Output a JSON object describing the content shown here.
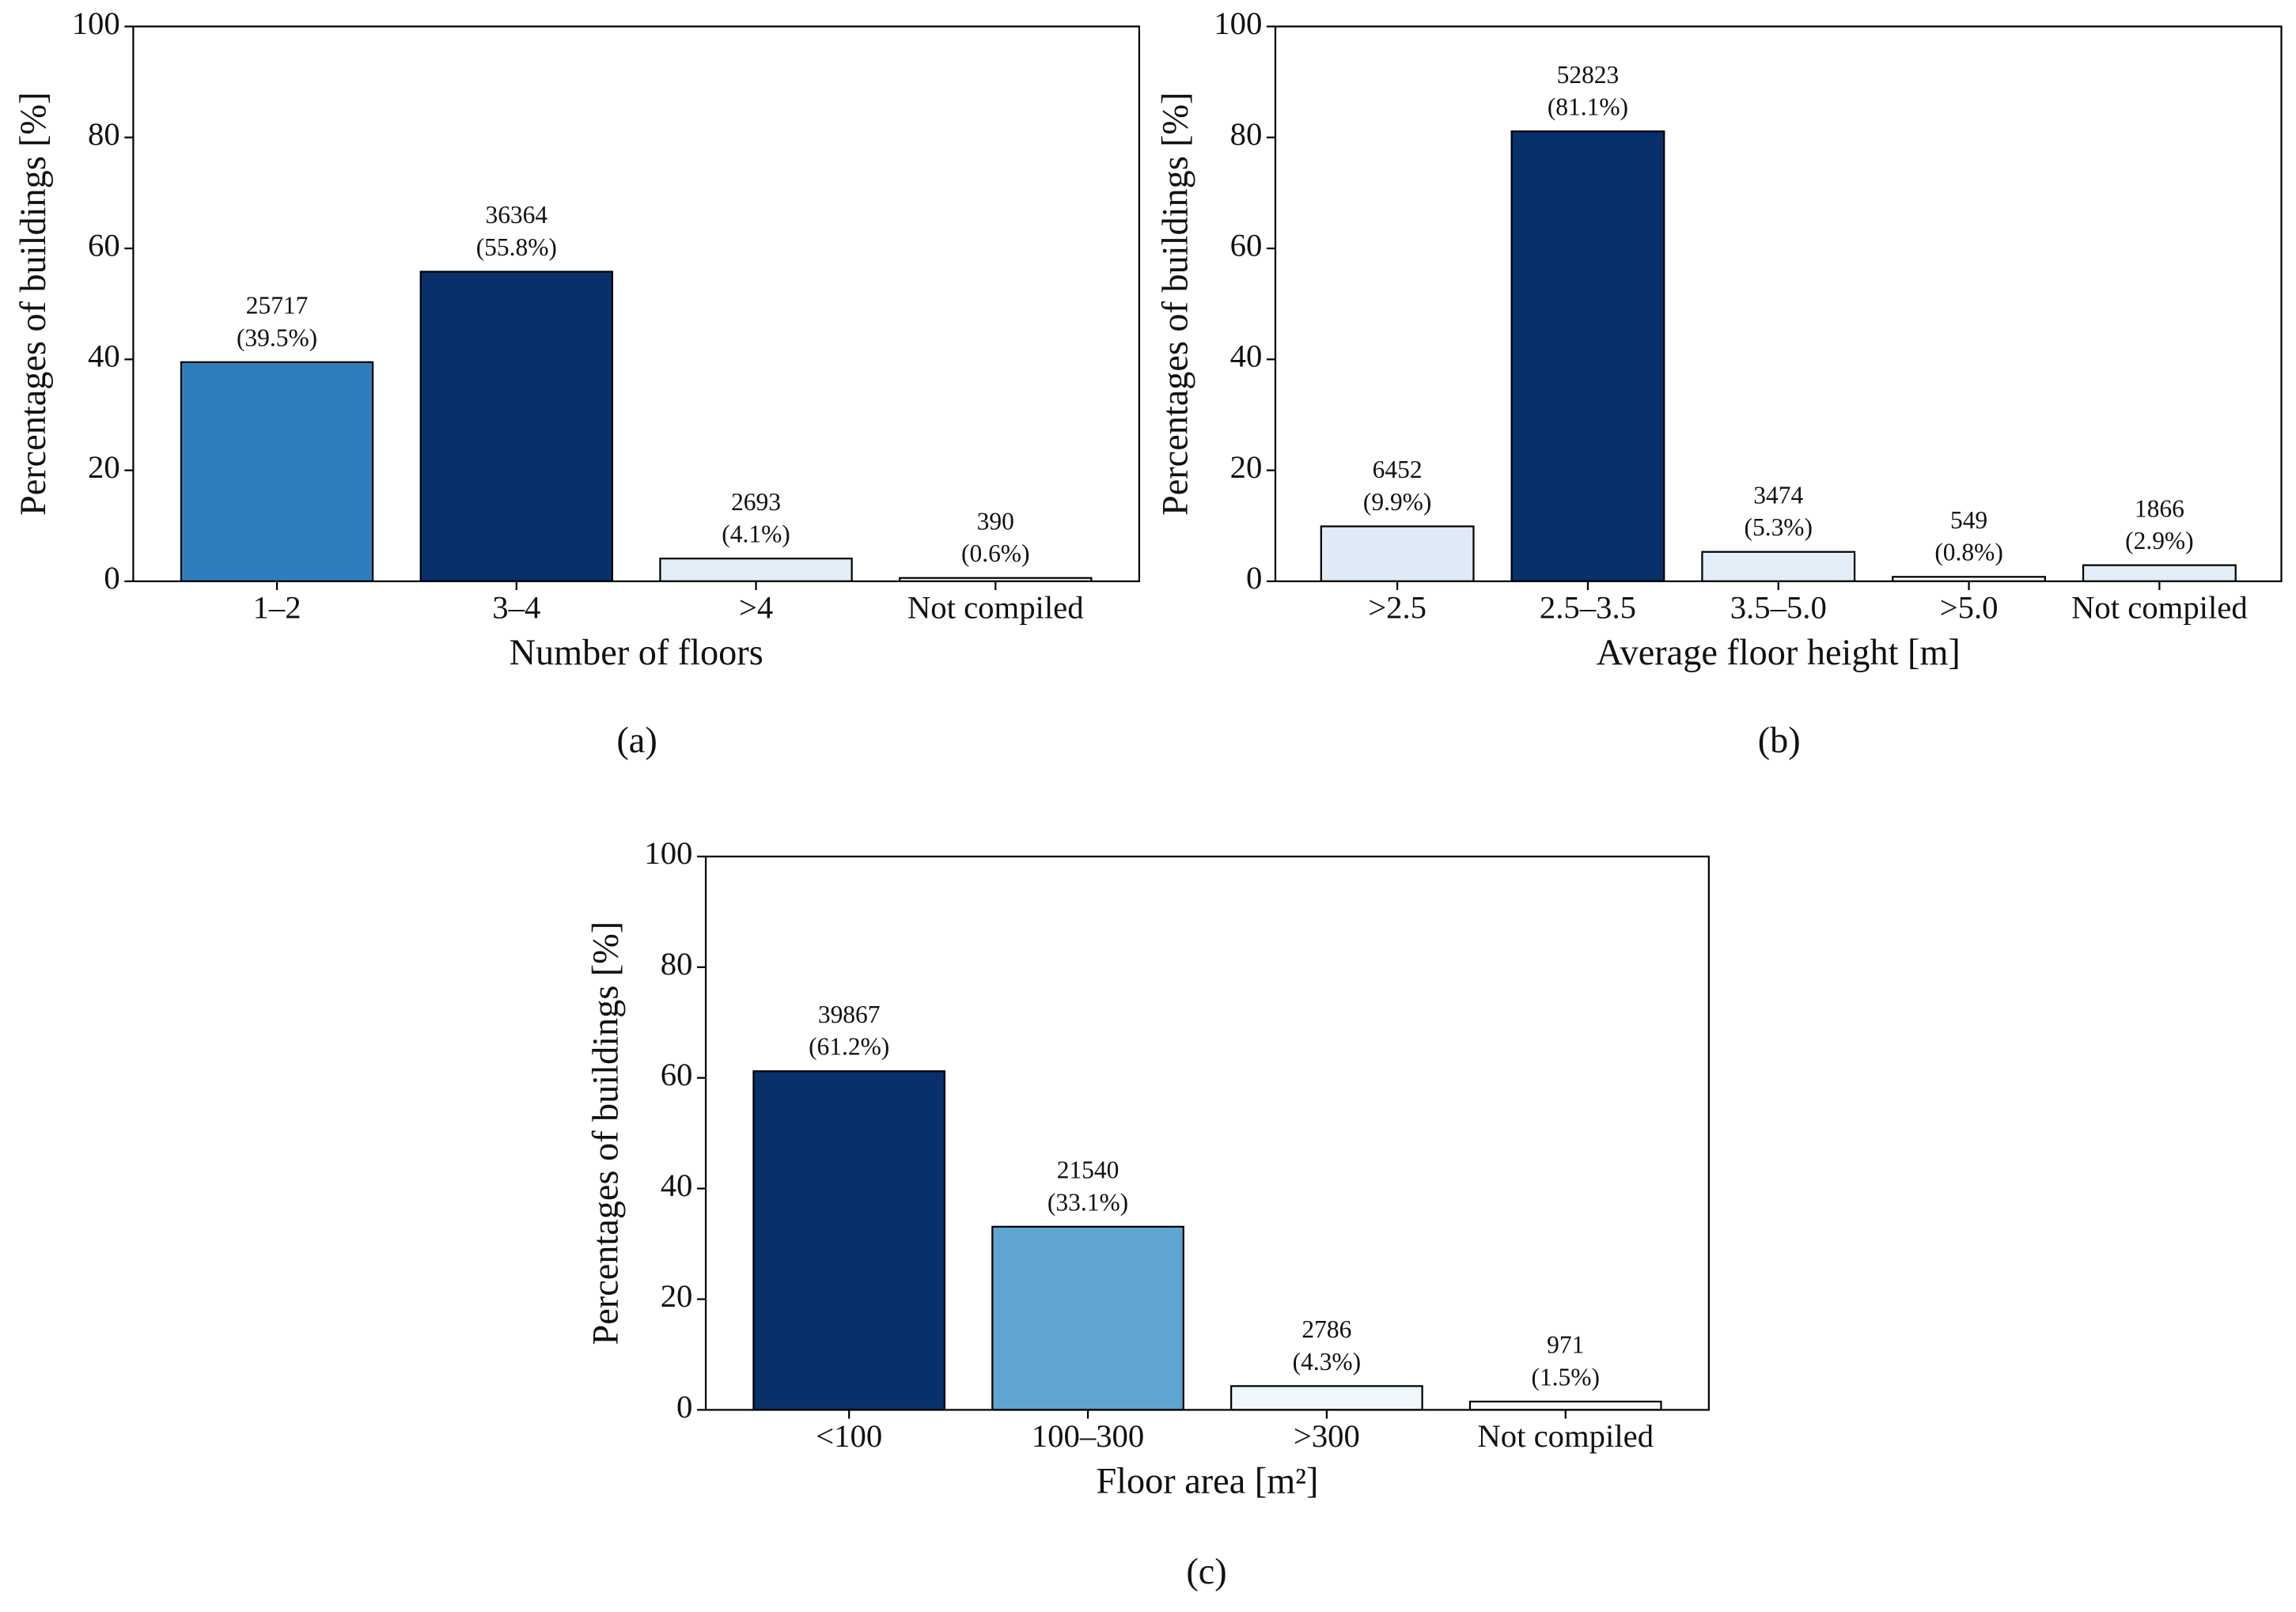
{
  "chart_data": [
    {
      "type": "bar",
      "caption": "(a)",
      "xlabel": "Number of floors",
      "ylabel": "Percentages of buildings [%]",
      "categories": [
        "1–2",
        "3–4",
        ">4",
        "Not compiled"
      ],
      "values": [
        39.5,
        55.8,
        4.1,
        0.6
      ],
      "value_labels": [
        "(39.5%)",
        "(55.8%)",
        "(4.1%)",
        "(0.6%)"
      ],
      "counts": [
        25717,
        36364,
        2693,
        390
      ],
      "colors": [
        "#2e7ebc",
        "#08306b",
        "#e3eef9",
        "#f7fbff"
      ],
      "ylim": [
        0,
        100
      ],
      "yticks": [
        0,
        20,
        40,
        60,
        80,
        100
      ]
    },
    {
      "type": "bar",
      "caption": "(b)",
      "xlabel": "Average floor height [m]",
      "ylabel": "Percentages of buildings [%]",
      "categories": [
        ">2.5",
        "2.5–3.5",
        "3.5–5.0",
        ">5.0",
        "Not compiled"
      ],
      "values": [
        9.9,
        81.1,
        5.3,
        0.8,
        2.9
      ],
      "value_labels": [
        "(9.9%)",
        "(81.1%)",
        "(5.3%)",
        "(0.8%)",
        "(2.9%)"
      ],
      "counts": [
        6452,
        52823,
        3474,
        549,
        1866
      ],
      "colors": [
        "#deebf7",
        "#08306b",
        "#e3eef9",
        "#f7fbff",
        "#e3eef9"
      ],
      "ylim": [
        0,
        100
      ],
      "yticks": [
        0,
        20,
        40,
        60,
        80,
        100
      ]
    },
    {
      "type": "bar",
      "caption": "(c)",
      "xlabel": "Floor area [m²]",
      "ylabel": "Percentages of buildings [%]",
      "categories": [
        "<100",
        "100–300",
        ">300",
        "Not compiled"
      ],
      "values": [
        61.2,
        33.1,
        4.3,
        1.5
      ],
      "value_labels": [
        "(61.2%)",
        "(33.1%)",
        "(4.3%)",
        "(1.5%)"
      ],
      "counts": [
        39867,
        21540,
        2786,
        971
      ],
      "colors": [
        "#08306b",
        "#5fa5d1",
        "#eff6fc",
        "#f7fbff"
      ],
      "ylim": [
        0,
        100
      ],
      "yticks": [
        0,
        20,
        40,
        60,
        80,
        100
      ]
    }
  ]
}
